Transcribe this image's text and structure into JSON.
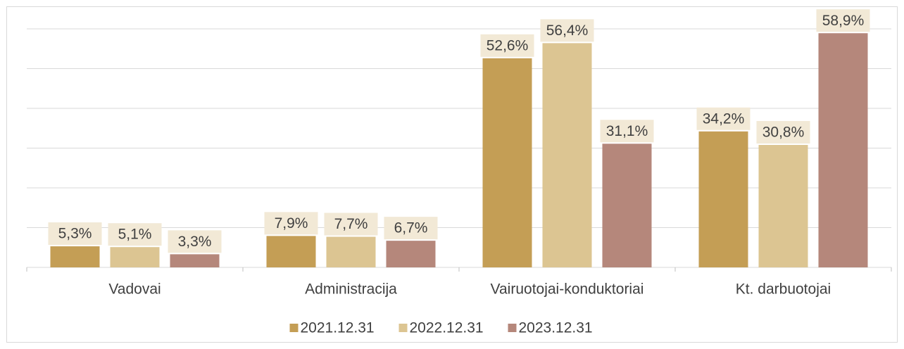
{
  "chart_data": {
    "type": "bar",
    "categories": [
      "Vadovai",
      "Administracija",
      "Vairuotojai-konduktoriai",
      "Kt. darbuotojai"
    ],
    "series": [
      {
        "name": "2021.12.31",
        "color": "#c49e55",
        "values": [
          5.3,
          7.9,
          52.6,
          34.2
        ],
        "value_labels": [
          "5,3%",
          "7,9%",
          "52,6%",
          "34,2%"
        ]
      },
      {
        "name": "2022.12.31",
        "color": "#dcc592",
        "values": [
          5.1,
          7.7,
          56.4,
          30.8
        ],
        "value_labels": [
          "5,1%",
          "7,7%",
          "56,4%",
          "30,8%"
        ]
      },
      {
        "name": "2023.12.31",
        "color": "#b5877b",
        "values": [
          3.3,
          6.7,
          31.1,
          58.9
        ],
        "value_labels": [
          "3,3%",
          "6,7%",
          "31,1%",
          "58,9%"
        ]
      }
    ],
    "ylim": [
      0,
      60
    ],
    "yticks": [
      0,
      10,
      20,
      30,
      40,
      50,
      60
    ],
    "grid": true,
    "legend": "bottom"
  }
}
